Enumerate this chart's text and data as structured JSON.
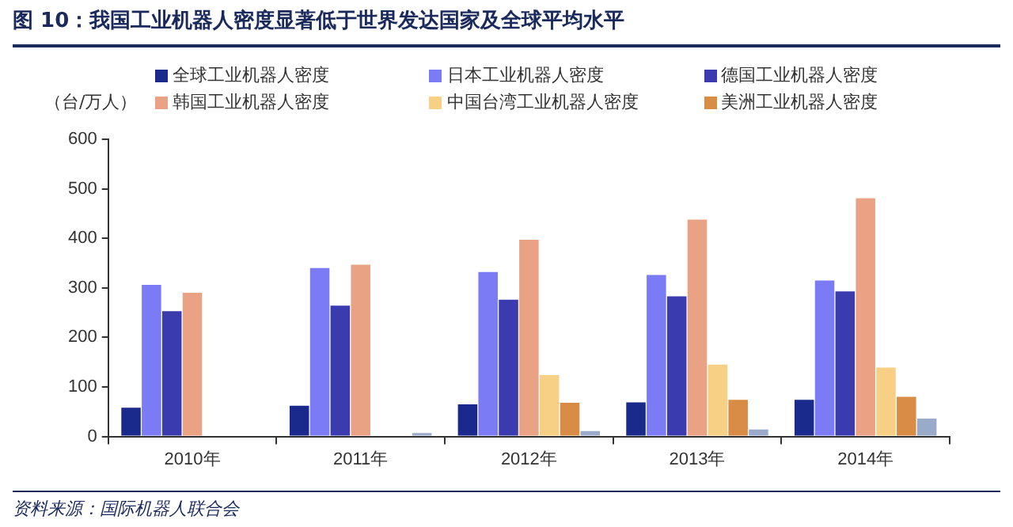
{
  "chart_data": {
    "type": "bar",
    "title": "图 10：我国工业机器人密度显著低于世界发达国家及全球平均水平",
    "ylabel": "（台/万人）",
    "categories": [
      "2010年",
      "2011年",
      "2012年",
      "2013年",
      "2014年"
    ],
    "series": [
      {
        "name": "全球工业机器人密度",
        "color": "#1a2a8c",
        "values": [
          58,
          62,
          65,
          69,
          74
        ]
      },
      {
        "name": "日本工业机器人密度",
        "color": "#7b7bf5",
        "values": [
          306,
          340,
          332,
          326,
          315
        ]
      },
      {
        "name": "德国工业机器人密度",
        "color": "#3b3bb0",
        "values": [
          253,
          264,
          276,
          283,
          293
        ]
      },
      {
        "name": "韩国工业机器人密度",
        "color": "#e9a384",
        "values": [
          290,
          347,
          397,
          438,
          481
        ]
      },
      {
        "name": "中国台湾工业机器人密度",
        "color": "#f7cf85",
        "values": [
          null,
          null,
          124,
          145,
          139
        ]
      },
      {
        "name": "美洲工业机器人密度",
        "color": "#d98c45",
        "values": [
          null,
          null,
          68,
          74,
          80
        ]
      },
      {
        "color": "#9aaacb",
        "values": [
          null,
          7,
          11,
          14,
          36
        ]
      }
    ],
    "ylim": [
      0,
      600
    ],
    "yticks": [
      0,
      100,
      200,
      300,
      400,
      500,
      600
    ],
    "grid": false,
    "legend": "top",
    "annotations": [
      "资料来源：国际机器人联合会"
    ]
  }
}
